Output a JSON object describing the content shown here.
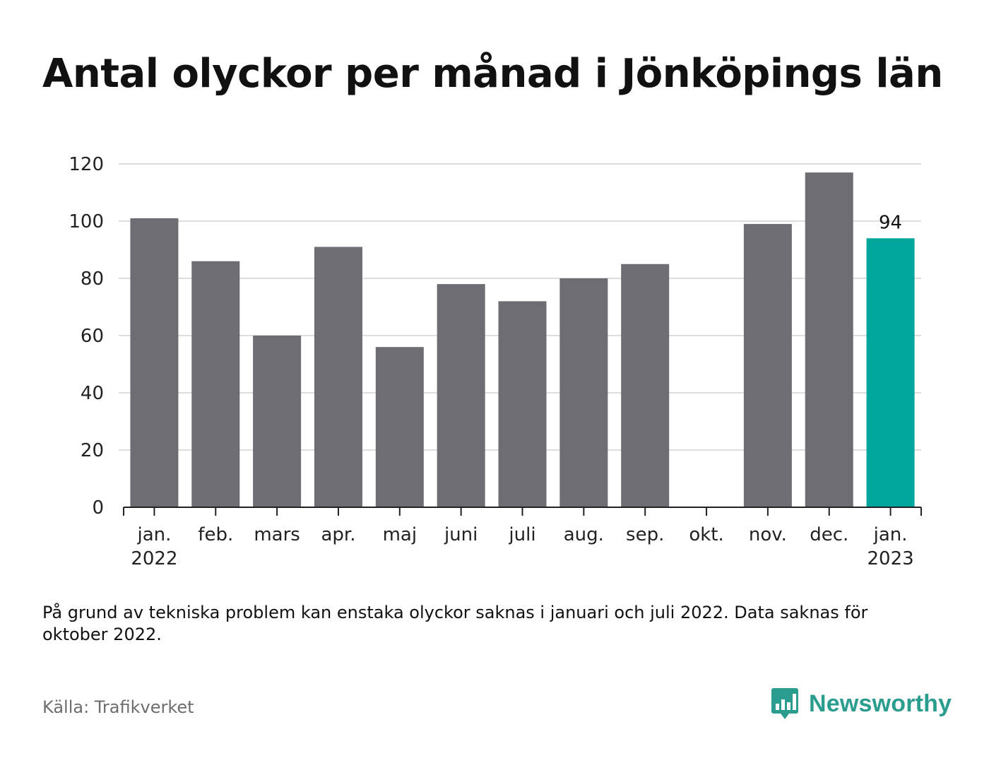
{
  "title": "Antal olyckor per månad i Jönköpings län",
  "note": "På grund av tekniska problem kan enstaka olyckor saknas i januari och juli 2022. Data saknas för oktober 2022.",
  "source": "Källa: Trafikverket",
  "brand": {
    "name": "Newsworthy",
    "icon": "newsworthy-logo-icon",
    "color": "#2a9d8f"
  },
  "chart_data": {
    "type": "bar",
    "categories": [
      [
        "jan.",
        "2022"
      ],
      [
        "feb."
      ],
      [
        "mars"
      ],
      [
        "apr."
      ],
      [
        "maj"
      ],
      [
        "juni"
      ],
      [
        "juli"
      ],
      [
        "aug."
      ],
      [
        "sep."
      ],
      [
        "okt."
      ],
      [
        "nov."
      ],
      [
        "dec."
      ],
      [
        "jan.",
        "2023"
      ]
    ],
    "values": [
      101,
      86,
      60,
      91,
      56,
      78,
      72,
      80,
      85,
      null,
      99,
      117,
      94
    ],
    "highlight_index": 12,
    "data_labels": [
      {
        "index": 12,
        "text": "94"
      }
    ],
    "yticks": [
      0,
      20,
      40,
      60,
      80,
      100,
      120
    ],
    "ylim": [
      0,
      120
    ],
    "grid": true,
    "colors": {
      "bar": "#6e6d73",
      "highlight": "#00a59b",
      "grid": "#dddddd",
      "axis": "#222222"
    }
  }
}
